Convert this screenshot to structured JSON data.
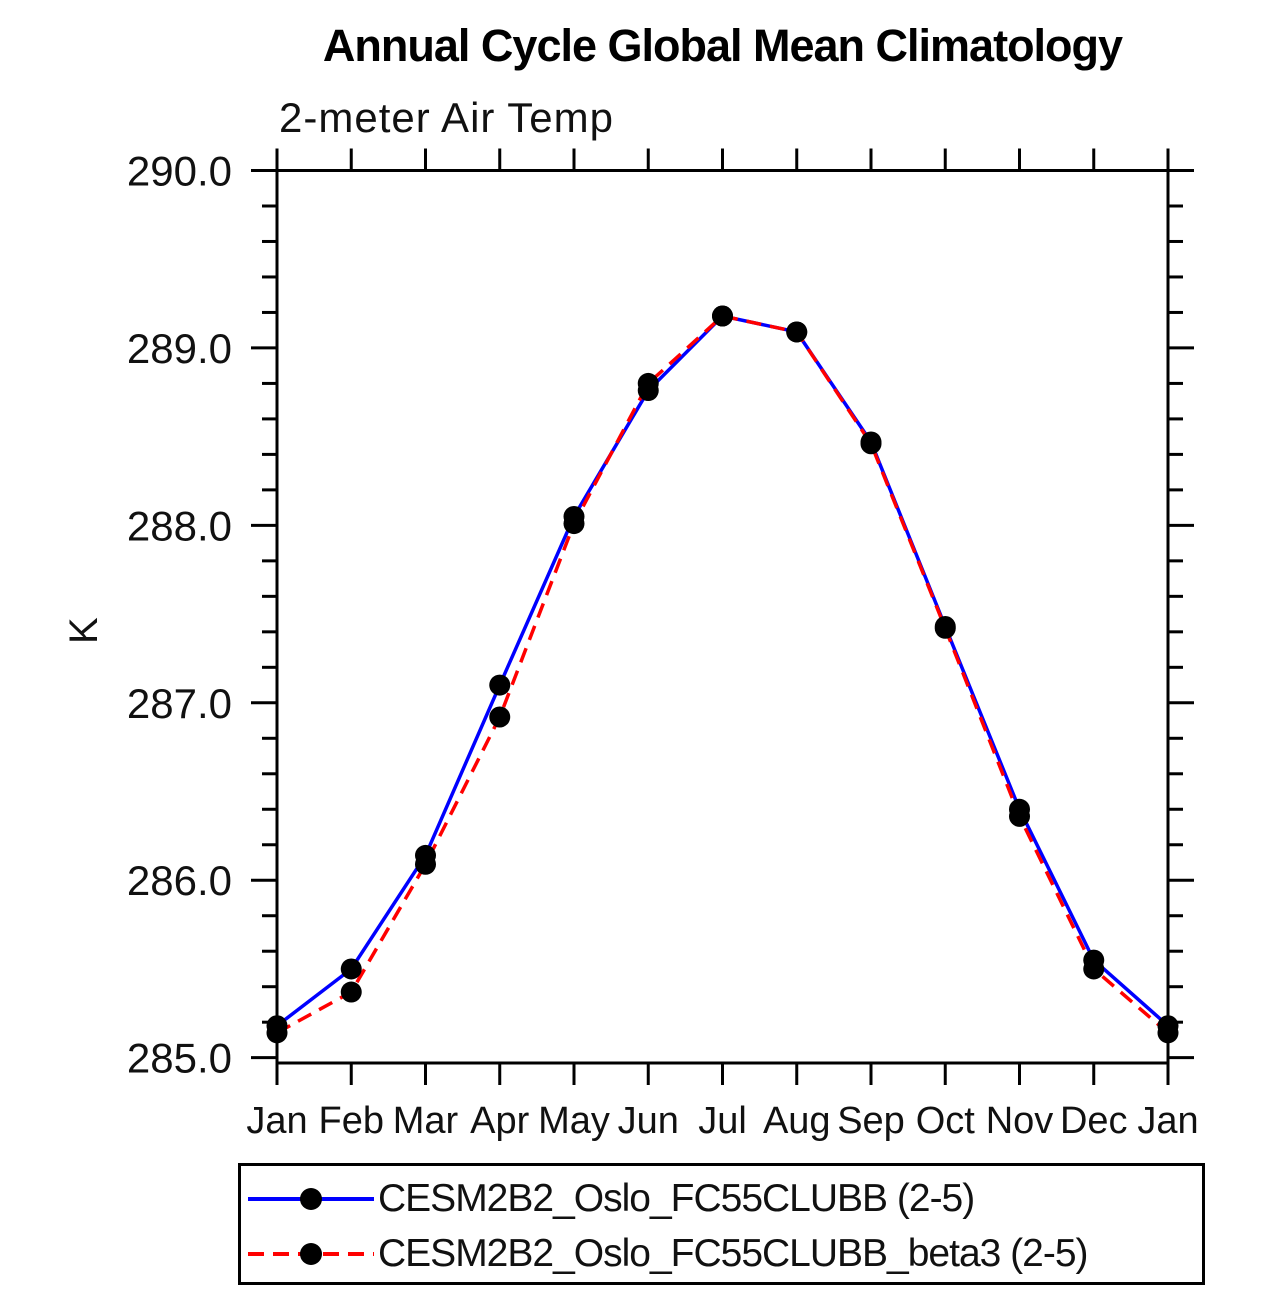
{
  "figure": {
    "background": "#ffffff",
    "axis_color": "#000000"
  },
  "chart_data": {
    "type": "line",
    "title": "Annual Cycle Global Mean Climatology",
    "subtitle": "2-meter Air Temp",
    "ylabel": "K",
    "xlabel": "",
    "categories": [
      "Jan",
      "Feb",
      "Mar",
      "Apr",
      "May",
      "Jun",
      "Jul",
      "Aug",
      "Sep",
      "Oct",
      "Nov",
      "Dec",
      "Jan"
    ],
    "series": [
      {
        "name": "CESM2B2_Oslo_FC55CLUBB (2-5)",
        "color": "#0000ff",
        "line_style": "solid",
        "marker": "filled-circle",
        "marker_color": "#000000",
        "values": [
          285.18,
          285.5,
          286.14,
          287.1,
          288.05,
          288.76,
          289.18,
          289.09,
          288.47,
          287.43,
          286.4,
          285.55,
          285.18
        ]
      },
      {
        "name": "CESM2B2_Oslo_FC55CLUBB_beta3 (2-5)",
        "color": "#ff0000",
        "line_style": "dashed",
        "marker": "filled-circle",
        "marker_color": "#000000",
        "values": [
          285.14,
          285.37,
          286.09,
          286.92,
          288.01,
          288.8,
          289.18,
          289.09,
          288.46,
          287.42,
          286.36,
          285.5,
          285.14
        ]
      }
    ],
    "ylim": [
      284.97,
      290.0
    ],
    "yticks_major": [
      285.0,
      286.0,
      287.0,
      288.0,
      289.0,
      290.0
    ],
    "ytick_labels": [
      "285.0",
      "286.0",
      "287.0",
      "288.0",
      "289.0",
      "290.0"
    ],
    "ytick_minor_step": 0.2,
    "grid": false,
    "legend_position": "bottom-left-box"
  }
}
